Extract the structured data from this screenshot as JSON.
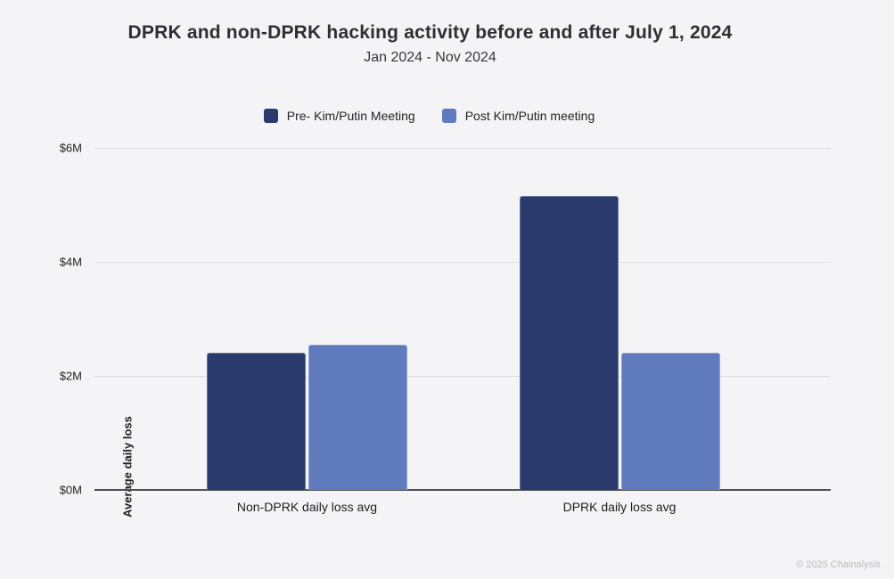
{
  "header": {
    "title": "DPRK and non-DPRK hacking activity before and after July 1, 2024",
    "subtitle": "Jan 2024 - Nov 2024"
  },
  "chart_data": {
    "type": "bar",
    "title": "DPRK and non-DPRK hacking activity before and after July 1, 2024",
    "subtitle": "Jan 2024 - Nov 2024",
    "categories": [
      "Non-DPRK daily loss avg",
      "DPRK daily loss avg"
    ],
    "series": [
      {
        "name": "Pre- Kim/Putin Meeting",
        "color": "#2a3a6d",
        "values": [
          2.4,
          5.15
        ]
      },
      {
        "name": "Post Kim/Putin meeting",
        "color": "#5f7abd",
        "values": [
          2.55,
          2.4
        ]
      }
    ],
    "values_unit": "$M",
    "ylabel": "Average daily loss",
    "xlabel": "",
    "yticks": [
      {
        "label": "$0M",
        "value": 0
      },
      {
        "label": "$2M",
        "value": 2
      },
      {
        "label": "$4M",
        "value": 4
      },
      {
        "label": "$6M",
        "value": 6
      }
    ],
    "ylim": [
      0,
      6
    ],
    "grid": true,
    "legend_position": "top"
  },
  "footer": {
    "copyright": "© 2025 Chainalysis"
  },
  "colors": {
    "background": "#f4f4f6",
    "gridline": "#dcdcde",
    "axis_line": "#4f4f54",
    "title_text": "#2e2f36",
    "body_text": "#1d1e24",
    "footer_text": "#b9babe",
    "series_pre": "#2a3a6d",
    "series_post": "#5f7abd"
  }
}
